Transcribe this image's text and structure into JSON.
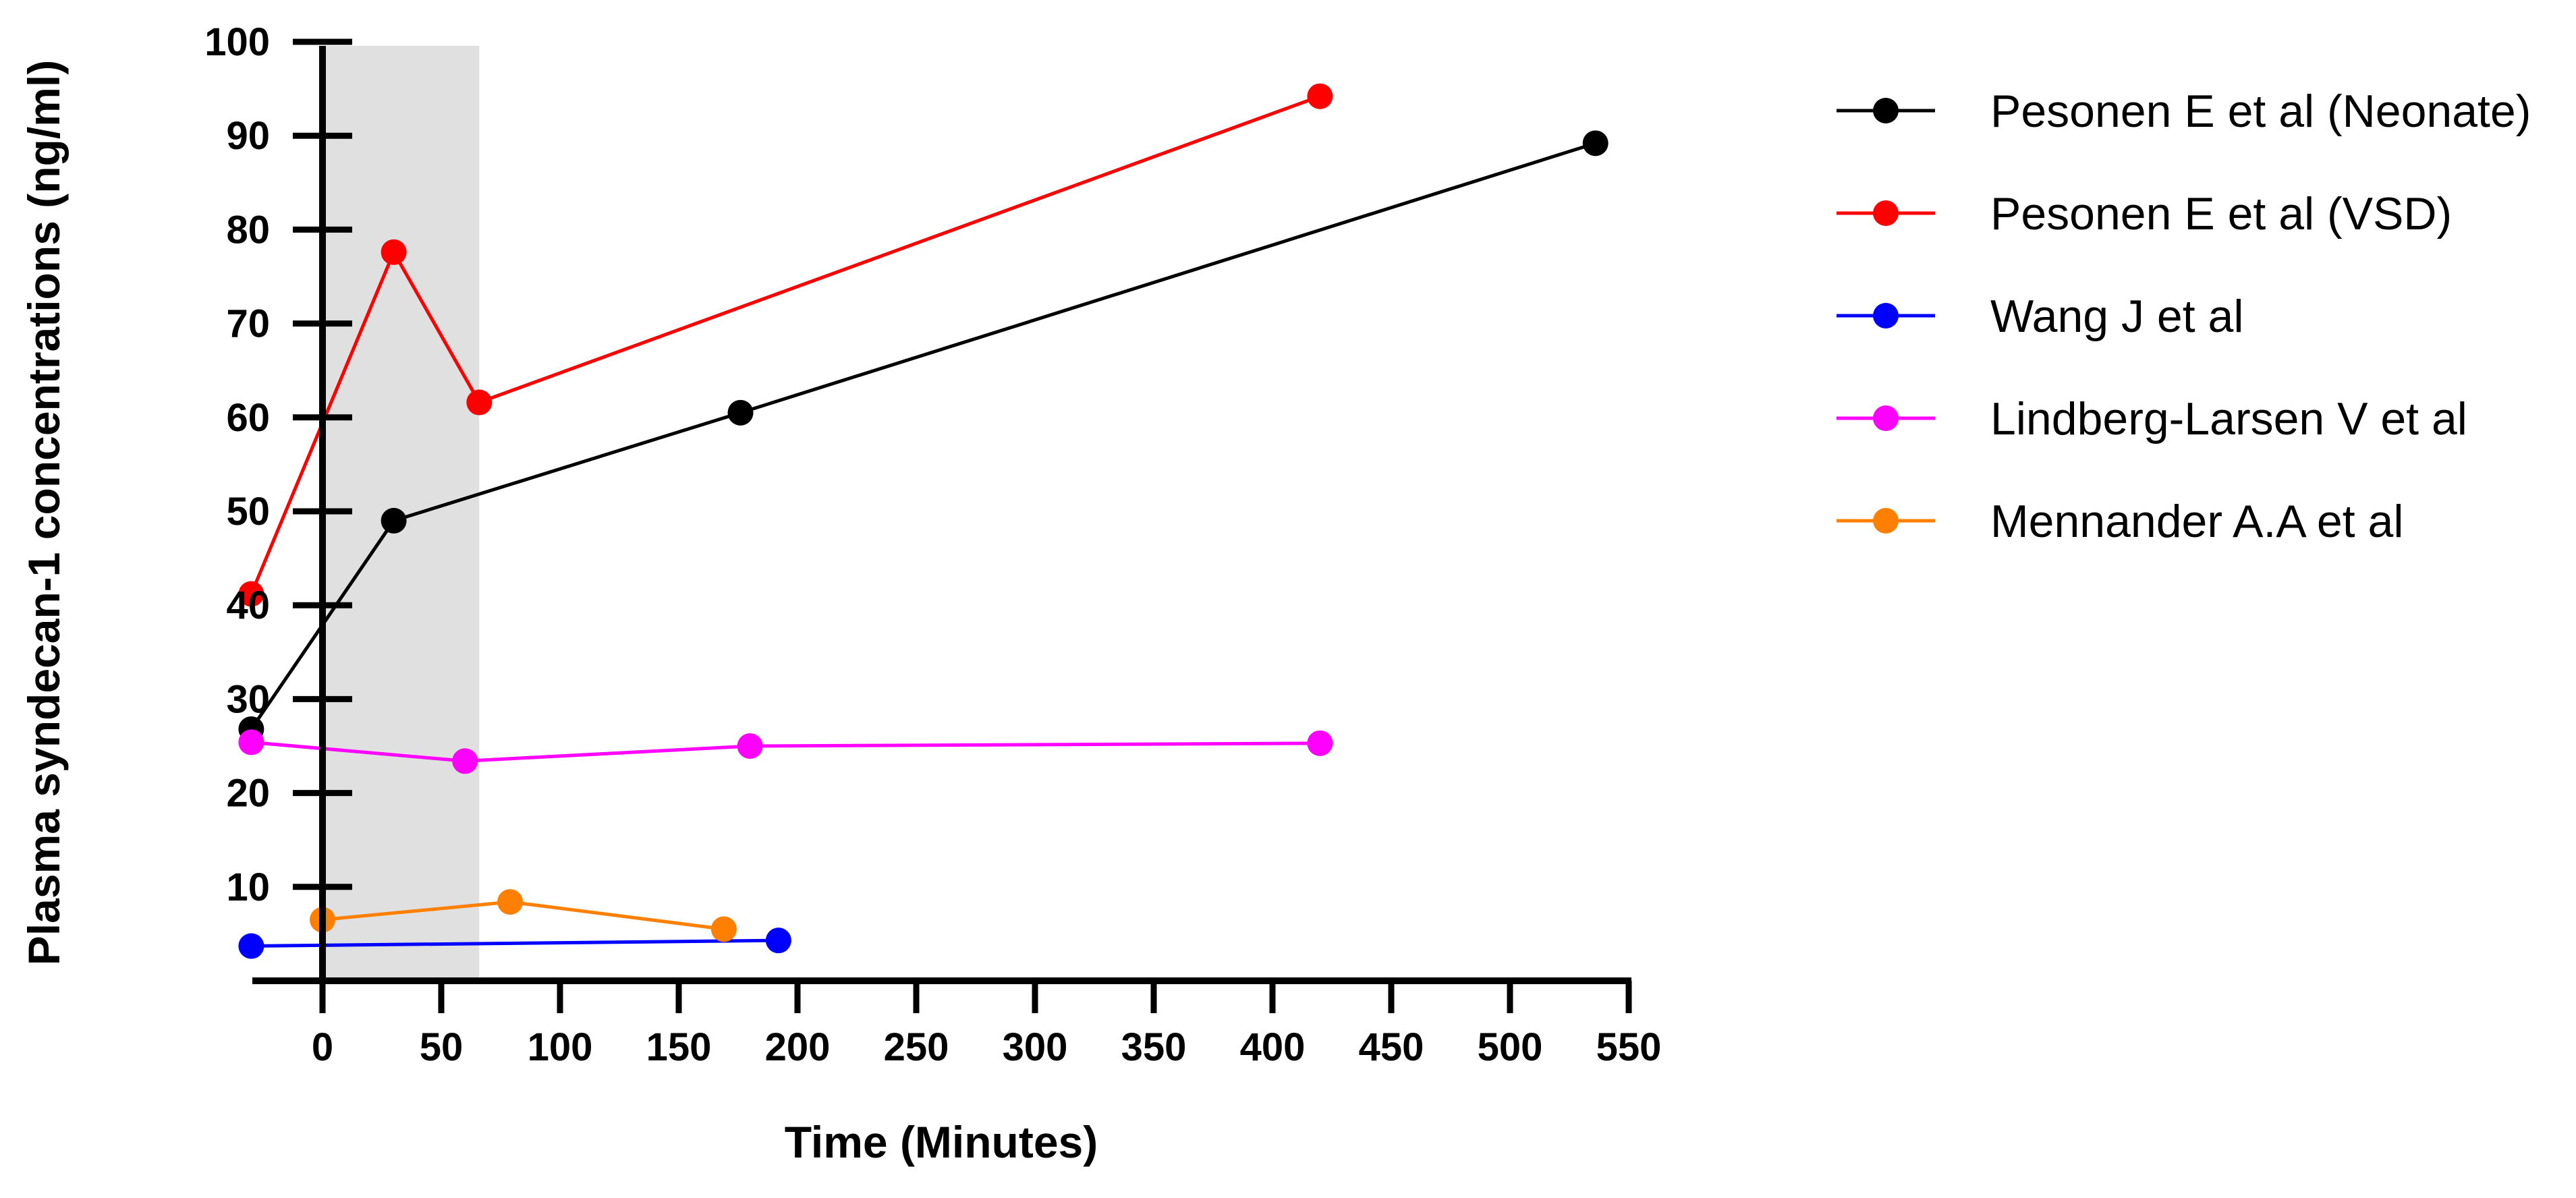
{
  "chart_data": {
    "type": "line",
    "xlabel": "Time (Minutes)",
    "ylabel": "Plasma syndecan-1 concentrations (ng/ml)",
    "xlim": [
      -30,
      550
    ],
    "ylim": [
      0,
      100
    ],
    "x_ticks": [
      0,
      50,
      100,
      150,
      200,
      250,
      300,
      350,
      400,
      450,
      500,
      550
    ],
    "y_ticks": [
      10,
      20,
      30,
      40,
      50,
      60,
      70,
      80,
      90,
      100
    ],
    "shaded_region": {
      "x_start": 0,
      "x_end": 66,
      "color": "#e0e0e0"
    },
    "legend_position": "right",
    "series": [
      {
        "name": "Pesonen E et al (Neonate)",
        "color": "#000000",
        "points": [
          [
            -30,
            26.8
          ],
          [
            30,
            49
          ],
          [
            176,
            60.5
          ],
          [
            536,
            89.2
          ]
        ]
      },
      {
        "name": "Pesonen E et al (VSD)",
        "color": "#ff0000",
        "points": [
          [
            -30,
            41.2
          ],
          [
            30,
            77.6
          ],
          [
            66,
            61.6
          ],
          [
            420,
            94.2
          ]
        ]
      },
      {
        "name": "Wang J et al",
        "color": "#0000ff",
        "points": [
          [
            -30,
            3.7
          ],
          [
            192,
            4.3
          ]
        ]
      },
      {
        "name": "Lindberg-Larsen V et al",
        "color": "#ff00ff",
        "points": [
          [
            -30,
            25.4
          ],
          [
            60,
            23.4
          ],
          [
            180,
            25
          ],
          [
            420,
            25.3
          ]
        ]
      },
      {
        "name": "Mennander A.A et al",
        "color": "#ff8000",
        "points": [
          [
            0,
            6.5
          ],
          [
            79,
            8.4
          ],
          [
            169,
            5.5
          ]
        ]
      }
    ]
  }
}
